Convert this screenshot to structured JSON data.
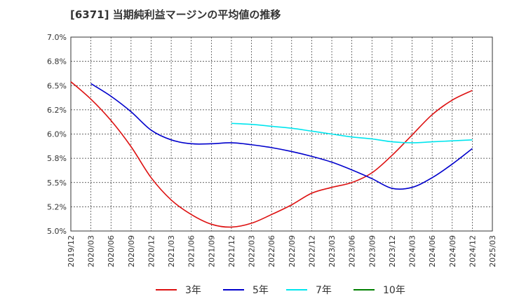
{
  "title": "[6371]  当期純利益マージンの平均値の推移",
  "chart_data": {
    "type": "line",
    "y_tick_labels": [
      "5.0%",
      "5.2%",
      "5.5%",
      "5.8%",
      "6.0%",
      "6.2%",
      "6.5%",
      "6.8%",
      "7.0%"
    ],
    "y_ticks": [
      5.0,
      5.25,
      5.5,
      5.75,
      6.0,
      6.25,
      6.5,
      6.75,
      7.0
    ],
    "ylim": [
      5.0,
      7.0
    ],
    "x_tick_labels": [
      "2019/12",
      "2020/03",
      "2020/06",
      "2020/09",
      "2020/12",
      "2021/03",
      "2021/06",
      "2021/09",
      "2021/12",
      "2022/03",
      "2022/06",
      "2022/09",
      "2022/12",
      "2023/03",
      "2023/06",
      "2023/09",
      "2023/12",
      "2024/03",
      "2024/06",
      "2024/09",
      "2024/12",
      "2025/03"
    ],
    "grid": true,
    "legend_position": "bottom",
    "series": [
      {
        "name": "3年",
        "color": "#dd1111",
        "x": [
          "2019/12",
          "2020/03",
          "2020/06",
          "2020/09",
          "2020/12",
          "2021/03",
          "2021/06",
          "2021/09",
          "2021/12",
          "2022/03",
          "2022/06",
          "2022/09",
          "2022/12",
          "2023/03",
          "2023/06",
          "2023/09",
          "2023/12",
          "2024/03",
          "2024/06",
          "2024/09",
          "2024/12"
        ],
        "values": [
          6.54,
          6.36,
          6.14,
          5.87,
          5.55,
          5.32,
          5.17,
          5.07,
          5.04,
          5.08,
          5.17,
          5.27,
          5.39,
          5.45,
          5.5,
          5.6,
          5.78,
          5.99,
          6.2,
          6.35,
          6.45
        ]
      },
      {
        "name": "5年",
        "color": "#0000cc",
        "x": [
          "2020/03",
          "2020/06",
          "2020/09",
          "2020/12",
          "2021/03",
          "2021/06",
          "2021/09",
          "2021/12",
          "2022/03",
          "2022/06",
          "2022/09",
          "2022/12",
          "2023/03",
          "2023/06",
          "2023/09",
          "2023/12",
          "2024/03",
          "2024/06",
          "2024/09",
          "2024/12"
        ],
        "values": [
          6.52,
          6.39,
          6.23,
          6.04,
          5.94,
          5.9,
          5.9,
          5.91,
          5.89,
          5.86,
          5.82,
          5.77,
          5.71,
          5.63,
          5.54,
          5.44,
          5.45,
          5.55,
          5.69,
          5.85
        ]
      },
      {
        "name": "7年",
        "color": "#00e5ee",
        "x": [
          "2021/12",
          "2022/03",
          "2022/06",
          "2022/09",
          "2022/12",
          "2023/03",
          "2023/06",
          "2023/09",
          "2023/12",
          "2024/03",
          "2024/06",
          "2024/09",
          "2024/12"
        ],
        "values": [
          6.11,
          6.1,
          6.08,
          6.06,
          6.03,
          6.0,
          5.97,
          5.95,
          5.92,
          5.91,
          5.92,
          5.93,
          5.94
        ]
      },
      {
        "name": "10年",
        "color": "#008000",
        "x": [],
        "values": []
      }
    ]
  }
}
